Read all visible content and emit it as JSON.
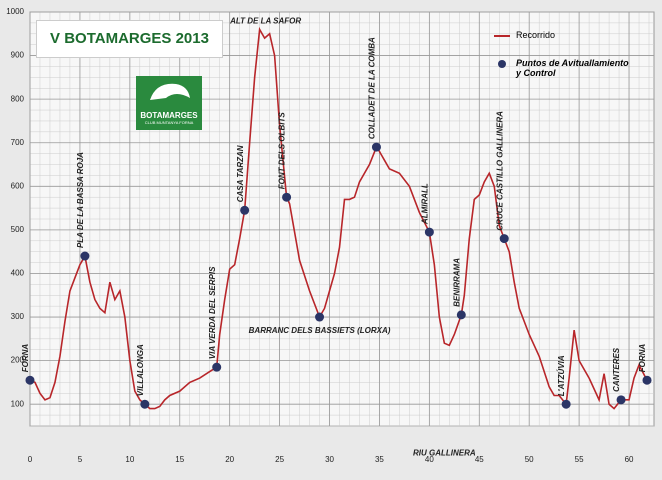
{
  "chart_data": {
    "type": "line",
    "title": "V BOTAMARGES 2013",
    "logo": {
      "name": "BOTAMARGES",
      "subtitle": "CLUB MUNTANYA FORNA"
    },
    "xlim": [
      0,
      62.5
    ],
    "xticks": [
      0,
      5,
      10,
      15,
      20,
      25,
      30,
      35,
      40,
      45,
      50,
      55,
      60
    ],
    "ylim": [
      50,
      1000
    ],
    "yticks": [
      100,
      200,
      300,
      400,
      500,
      600,
      700,
      800,
      900,
      1000
    ],
    "grid": true,
    "legend": "top-right",
    "series": [
      {
        "name": "Recorrido",
        "color": "#b8262a",
        "x": [
          0,
          0.5,
          1,
          1.5,
          2,
          2.5,
          3,
          3.5,
          4,
          4.5,
          5,
          5.5,
          6,
          6.5,
          7,
          7.5,
          8,
          8.5,
          9,
          9.5,
          10,
          10.5,
          11,
          11.5,
          12,
          12.5,
          13,
          13.5,
          14,
          15,
          16,
          17,
          18,
          18.7,
          19,
          19.5,
          20,
          20.5,
          21,
          21.5,
          22,
          22.5,
          23,
          23.5,
          24,
          24.5,
          25,
          25.7,
          26,
          27,
          28,
          29,
          29.5,
          30,
          30.5,
          31,
          31.5,
          32,
          32.5,
          33,
          34,
          34.7,
          35,
          35.5,
          36,
          37,
          38,
          39,
          40,
          40.5,
          41,
          41.5,
          42,
          42.5,
          43.2,
          43.5,
          44,
          44.5,
          45,
          45.5,
          46,
          46.5,
          47,
          47.5,
          48,
          48.5,
          49,
          50,
          51,
          52,
          52.5,
          53,
          53.7,
          54,
          54.5,
          55,
          56,
          57,
          57.5,
          58,
          58.5,
          59.2,
          60,
          60.5,
          61,
          61.8
        ],
        "values": [
          155,
          150,
          125,
          110,
          115,
          150,
          210,
          290,
          360,
          390,
          420,
          440,
          380,
          340,
          320,
          310,
          380,
          340,
          360,
          300,
          200,
          130,
          110,
          100,
          90,
          90,
          95,
          110,
          120,
          130,
          150,
          160,
          175,
          185,
          260,
          340,
          410,
          420,
          480,
          545,
          700,
          850,
          960,
          940,
          950,
          900,
          740,
          575,
          560,
          430,
          360,
          300,
          320,
          360,
          400,
          460,
          570,
          570,
          575,
          610,
          650,
          690,
          680,
          660,
          640,
          630,
          600,
          540,
          495,
          420,
          300,
          240,
          235,
          260,
          305,
          350,
          480,
          570,
          580,
          610,
          630,
          600,
          510,
          480,
          450,
          380,
          320,
          260,
          210,
          140,
          120,
          120,
          100,
          160,
          270,
          200,
          160,
          110,
          170,
          100,
          90,
          110,
          110,
          160,
          190,
          155
        ]
      },
      {
        "name": "Puntos de Avituallamiento y Control",
        "color": "#2b3566",
        "type": "scatter",
        "x": [
          0,
          5.5,
          11.5,
          18.7,
          21.5,
          25.7,
          29,
          34.7,
          40,
          43.2,
          47.5,
          53.7,
          59.2,
          61.8
        ],
        "values": [
          155,
          440,
          100,
          185,
          545,
          575,
          300,
          690,
          495,
          305,
          480,
          100,
          110,
          155
        ],
        "labels": [
          "FORNA",
          "PLA DE LA BASSA ROJA",
          "VILLALONGA",
          "VIA VERDA DEL SERPIS",
          "CASA TARZAN",
          "FONT DELS OLBITS",
          "BARRANC DELS BASSIETS (LORXA)",
          "COLLADET DE LA COMBA",
          "ALMIRALL",
          "BENIRRAMA",
          "CRUCE CASTILLO GALLINERA",
          "L'ATZÚVIA",
          "CANTERES",
          "FORNA"
        ]
      }
    ],
    "annotations": [
      {
        "text": "ALT DE LA SAFOR",
        "x": 23,
        "y": 960
      },
      {
        "text": "RIU GALLINERA",
        "x": 41.5,
        "y": 240
      }
    ]
  }
}
